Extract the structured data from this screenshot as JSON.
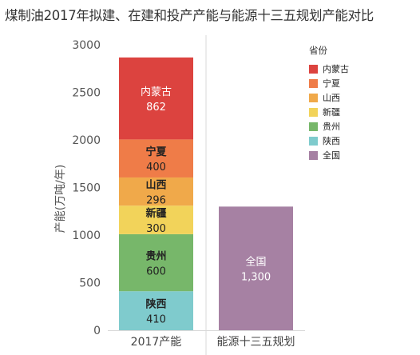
{
  "title": "煤制油2017年拟建、在建和投产产能与能源十三五规划产能对比",
  "chart_data": {
    "type": "bar",
    "stacked": true,
    "categories": [
      "2017产能",
      "能源十三五规划"
    ],
    "ylabel": "产能(万吨/年)",
    "xlabel": "",
    "ylim": [
      0,
      3000
    ],
    "yticks": [
      0,
      500,
      1000,
      1500,
      2000,
      2500,
      3000
    ],
    "legend_title": "省份",
    "legend_position": "right",
    "grid": false,
    "series": [
      {
        "name": "陕西",
        "color": "#7fcbcd",
        "values": [
          410,
          0
        ],
        "label": "410"
      },
      {
        "name": "贵州",
        "color": "#77b76a",
        "values": [
          600,
          0
        ],
        "label": "600"
      },
      {
        "name": "新疆",
        "color": "#f2d35a",
        "values": [
          300,
          0
        ],
        "label": "300"
      },
      {
        "name": "山西",
        "color": "#f0a94a",
        "values": [
          296,
          0
        ],
        "label": "296"
      },
      {
        "name": "宁夏",
        "color": "#ef7c48",
        "values": [
          400,
          0
        ],
        "label": "400"
      },
      {
        "name": "内蒙古",
        "color": "#dc433f",
        "values": [
          862,
          0
        ],
        "label": "862"
      },
      {
        "name": "全国",
        "color": "#a681a3",
        "values": [
          0,
          1300
        ],
        "label": "1,300"
      }
    ],
    "legend_order": [
      "内蒙古",
      "宁夏",
      "山西",
      "新疆",
      "贵州",
      "陕西",
      "全国"
    ]
  }
}
